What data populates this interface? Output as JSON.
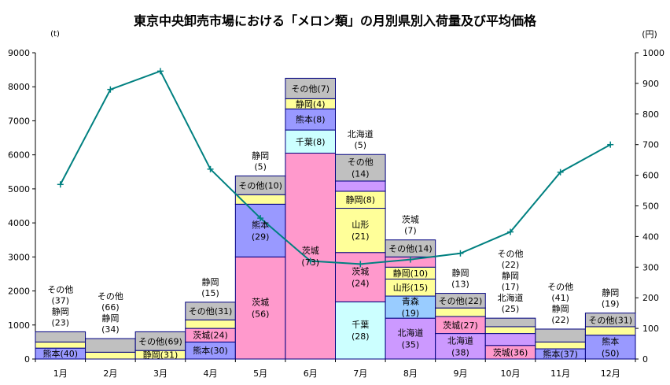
{
  "chart_data": {
    "type": "bar",
    "title": "東京中央卸売市場における「メロン類」の月別県別入荷量及び平均価格",
    "y_left_unit": "(t)",
    "y_right_unit": "(円)",
    "ylim_left": [
      0,
      9000
    ],
    "ylim_right": [
      0,
      1000
    ],
    "y_left_ticks": [
      0,
      1000,
      2000,
      3000,
      4000,
      5000,
      6000,
      7000,
      8000,
      9000
    ],
    "y_right_ticks": [
      0,
      100,
      200,
      300,
      400,
      500,
      600,
      700,
      800,
      900,
      1000
    ],
    "categories": [
      "1月",
      "2月",
      "3月",
      "4月",
      "5月",
      "6月",
      "7月",
      "8月",
      "9月",
      "10月",
      "11月",
      "12月"
    ],
    "colors": {
      "熊本": "#9999ff",
      "茨城": "#ff99cc",
      "千葉": "#ccffff",
      "静岡": "#ffff99",
      "その他": "#c0c0c0",
      "山形": "#ffff99",
      "北海道": "#cc99ff",
      "青森": "#99ccff",
      "frame": "#000080",
      "price_line": "#008080"
    },
    "stacks": [
      [
        {
          "name": "熊本",
          "value": 320,
          "label": "熊本(40)",
          "color": "#9999ff"
        },
        {
          "name": "静岡",
          "value": 180,
          "color": "#ffff99"
        },
        {
          "name": "その他",
          "value": 300,
          "color": "#c0c0c0"
        }
      ],
      [
        {
          "name": "静岡",
          "value": 200,
          "color": "#ffff99"
        },
        {
          "name": "その他",
          "value": 400,
          "color": "#c0c0c0"
        }
      ],
      [
        {
          "name": "静岡",
          "value": 250,
          "label": "静岡(31)",
          "color": "#ffff99"
        },
        {
          "name": "その他",
          "value": 550,
          "label": "その他(69)",
          "color": "#c0c0c0"
        }
      ],
      [
        {
          "name": "熊本",
          "value": 500,
          "label": "熊本(30)",
          "color": "#9999ff"
        },
        {
          "name": "茨城",
          "value": 400,
          "label": "茨城(24)",
          "color": "#ff99cc"
        },
        {
          "name": "静岡",
          "value": 250,
          "color": "#ffff99"
        },
        {
          "name": "その他",
          "value": 520,
          "label": "その他(31)",
          "color": "#c0c0c0"
        }
      ],
      [
        {
          "name": "茨城",
          "value": 3000,
          "label": "茨城\n(56)",
          "color": "#ff99cc"
        },
        {
          "name": "熊本",
          "value": 1550,
          "label": "熊本\n(29)",
          "color": "#9999ff"
        },
        {
          "name": "静岡",
          "value": 280,
          "color": "#ffff99"
        },
        {
          "name": "その他",
          "value": 550,
          "label": "その他(10)",
          "color": "#c0c0c0"
        }
      ],
      [
        {
          "name": "茨城",
          "value": 6050,
          "label": "茨城\n(73)",
          "color": "#ff99cc"
        },
        {
          "name": "千葉",
          "value": 680,
          "label": "千葉(8)",
          "color": "#ccffff"
        },
        {
          "name": "熊本",
          "value": 620,
          "label": "熊本(8)",
          "color": "#9999ff"
        },
        {
          "name": "静岡",
          "value": 300,
          "label": "静岡(4)",
          "color": "#ffff99"
        },
        {
          "name": "その他",
          "value": 600,
          "label": "その他(7)",
          "color": "#c0c0c0"
        }
      ],
      [
        {
          "name": "千葉",
          "value": 1680,
          "label": "千葉\n(28)",
          "color": "#ccffff"
        },
        {
          "name": "茨城",
          "value": 1450,
          "label": "茨城\n(24)",
          "color": "#ff99cc"
        },
        {
          "name": "山形",
          "value": 1300,
          "label": "山形\n(21)",
          "color": "#ffff99"
        },
        {
          "name": "静岡",
          "value": 500,
          "label": "静岡(8)",
          "color": "#ffff99"
        },
        {
          "name": "北海道",
          "value": 300,
          "color": "#cc99ff"
        },
        {
          "name": "その他",
          "value": 780,
          "label": "その他\n(14)",
          "color": "#c0c0c0"
        }
      ],
      [
        {
          "name": "北海道",
          "value": 1200,
          "label": "北海道\n(35)",
          "color": "#cc99ff"
        },
        {
          "name": "青森",
          "value": 650,
          "label": "青森\n(19)",
          "color": "#99ccff"
        },
        {
          "name": "山形",
          "value": 500,
          "label": "山形(15)",
          "color": "#ffff99"
        },
        {
          "name": "静岡",
          "value": 350,
          "label": "静岡(10)",
          "color": "#ffff99"
        },
        {
          "name": "茨城",
          "value": 300,
          "color": "#ff99cc"
        },
        {
          "name": "その他",
          "value": 500,
          "label": "その他(14)",
          "color": "#c0c0c0"
        }
      ],
      [
        {
          "name": "北海道",
          "value": 750,
          "label": "北海道\n(38)",
          "color": "#cc99ff"
        },
        {
          "name": "茨城",
          "value": 500,
          "label": "茨城(27)",
          "color": "#ff99cc"
        },
        {
          "name": "静岡",
          "value": 250,
          "color": "#ffff99"
        },
        {
          "name": "その他",
          "value": 430,
          "label": "その他(22)",
          "color": "#c0c0c0"
        }
      ],
      [
        {
          "name": "茨城",
          "value": 400,
          "label": "茨城(36)",
          "color": "#ff99cc"
        },
        {
          "name": "北海道",
          "value": 350,
          "color": "#cc99ff"
        },
        {
          "name": "静岡",
          "value": 200,
          "color": "#ffff99"
        },
        {
          "name": "その他",
          "value": 250,
          "color": "#c0c0c0"
        }
      ],
      [
        {
          "name": "熊本",
          "value": 300,
          "label": "熊本(37)",
          "color": "#9999ff"
        },
        {
          "name": "静岡",
          "value": 200,
          "color": "#ffff99"
        },
        {
          "name": "その他",
          "value": 380,
          "color": "#c0c0c0"
        }
      ],
      [
        {
          "name": "熊本",
          "value": 700,
          "label": "熊本\n(50)",
          "color": "#9999ff"
        },
        {
          "name": "静岡",
          "value": 250,
          "color": "#ffff99"
        },
        {
          "name": "その他",
          "value": 400,
          "label": "その他(31)",
          "color": "#c0c0c0"
        }
      ]
    ],
    "above_labels": [
      [
        "その他",
        "(37)",
        "静岡",
        "(23)"
      ],
      [
        "その他",
        "(66)",
        "静岡",
        "(34)"
      ],
      [],
      [
        "静岡",
        "(15)"
      ],
      [
        "静岡",
        "(5)"
      ],
      [],
      [
        "北海道",
        "(5)"
      ],
      [
        "茨城",
        "(7)"
      ],
      [
        "静岡",
        "(13)"
      ],
      [
        "その他",
        "(22)",
        "静岡",
        "(17)",
        "北海道",
        "(25)"
      ],
      [
        "その他",
        "(41)",
        "静岡",
        "(22)"
      ],
      [
        "静岡",
        "(19)"
      ]
    ],
    "price_series": {
      "name": "平均価格",
      "values": [
        570,
        880,
        940,
        620,
        460,
        320,
        310,
        325,
        345,
        415,
        610,
        700
      ]
    }
  }
}
